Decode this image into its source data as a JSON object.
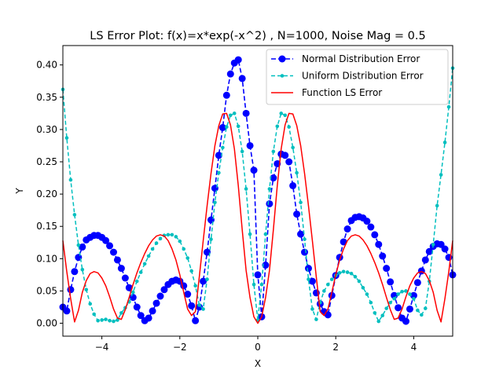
{
  "chart_data": {
    "type": "line",
    "title": "LS Error Plot: f(x)=x*exp(-x^2) , N=1000, Noise Mag = 0.5",
    "xlabel": "X",
    "ylabel": "Y",
    "xlim": [
      -5,
      5
    ],
    "ylim": [
      -0.02,
      0.43
    ],
    "xticks": [
      -4,
      -2,
      0,
      2,
      4
    ],
    "xtick_labels": [
      "−4",
      "−2",
      "0",
      "2",
      "4"
    ],
    "yticks": [
      0.0,
      0.05,
      0.1,
      0.15,
      0.2,
      0.25,
      0.3,
      0.35,
      0.4
    ],
    "ytick_labels": [
      "0.00",
      "0.05",
      "0.10",
      "0.15",
      "0.20",
      "0.25",
      "0.30",
      "0.35",
      "0.40"
    ],
    "grid": false,
    "legend_position": "top-right",
    "series": [
      {
        "name": "Normal Distribution Error",
        "color": "#0000ff",
        "style": "dashed",
        "marker": "large-circle",
        "x": [
          -5.0,
          -4.9,
          -4.8,
          -4.7,
          -4.6,
          -4.5,
          -4.4,
          -4.3,
          -4.2,
          -4.1,
          -4.0,
          -3.9,
          -3.8,
          -3.7,
          -3.6,
          -3.5,
          -3.4,
          -3.3,
          -3.2,
          -3.1,
          -3.0,
          -2.9,
          -2.8,
          -2.7,
          -2.6,
          -2.5,
          -2.4,
          -2.3,
          -2.2,
          -2.1,
          -2.0,
          -1.9,
          -1.8,
          -1.7,
          -1.6,
          -1.5,
          -1.4,
          -1.3,
          -1.2,
          -1.1,
          -1.0,
          -0.9,
          -0.8,
          -0.7,
          -0.6,
          -0.5,
          -0.4,
          -0.3,
          -0.2,
          -0.1,
          0.0,
          0.1,
          0.2,
          0.3,
          0.4,
          0.5,
          0.6,
          0.7,
          0.8,
          0.9,
          1.0,
          1.1,
          1.2,
          1.3,
          1.4,
          1.5,
          1.6,
          1.7,
          1.8,
          1.9,
          2.0,
          2.1,
          2.2,
          2.3,
          2.4,
          2.5,
          2.6,
          2.7,
          2.8,
          2.9,
          3.0,
          3.1,
          3.2,
          3.3,
          3.4,
          3.5,
          3.6,
          3.7,
          3.8,
          3.9,
          4.0,
          4.1,
          4.2,
          4.3,
          4.4,
          4.5,
          4.6,
          4.7,
          4.8,
          4.9,
          5.0
        ],
        "y": [
          0.025,
          0.019,
          0.052,
          0.08,
          0.102,
          0.118,
          0.129,
          0.133,
          0.136,
          0.136,
          0.133,
          0.128,
          0.12,
          0.11,
          0.098,
          0.085,
          0.07,
          0.055,
          0.04,
          0.025,
          0.012,
          0.004,
          0.008,
          0.019,
          0.031,
          0.042,
          0.052,
          0.06,
          0.065,
          0.067,
          0.065,
          0.058,
          0.045,
          0.027,
          0.004,
          0.025,
          0.065,
          0.11,
          0.16,
          0.209,
          0.26,
          0.303,
          0.353,
          0.386,
          0.403,
          0.408,
          0.379,
          0.325,
          0.275,
          0.237,
          0.075,
          0.01,
          0.09,
          0.185,
          0.225,
          0.247,
          0.262,
          0.26,
          0.25,
          0.213,
          0.169,
          0.138,
          0.11,
          0.085,
          0.065,
          0.047,
          0.03,
          0.018,
          0.013,
          0.043,
          0.074,
          0.102,
          0.126,
          0.146,
          0.159,
          0.164,
          0.165,
          0.163,
          0.158,
          0.149,
          0.137,
          0.122,
          0.104,
          0.085,
          0.064,
          0.043,
          0.024,
          0.008,
          0.003,
          0.022,
          0.043,
          0.063,
          0.081,
          0.098,
          0.111,
          0.119,
          0.123,
          0.122,
          0.115,
          0.102,
          0.075
        ]
      },
      {
        "name": "Uniform Distribution Error",
        "color": "#00bfbf",
        "style": "dashed",
        "marker": "small-circle",
        "x": [
          -5.0,
          -4.9,
          -4.8,
          -4.7,
          -4.6,
          -4.5,
          -4.4,
          -4.3,
          -4.2,
          -4.1,
          -4.0,
          -3.9,
          -3.8,
          -3.7,
          -3.6,
          -3.5,
          -3.4,
          -3.3,
          -3.2,
          -3.1,
          -3.0,
          -2.9,
          -2.8,
          -2.7,
          -2.6,
          -2.5,
          -2.4,
          -2.3,
          -2.2,
          -2.1,
          -2.0,
          -1.9,
          -1.8,
          -1.7,
          -1.6,
          -1.5,
          -1.4,
          -1.3,
          -1.2,
          -1.1,
          -1.0,
          -0.9,
          -0.8,
          -0.7,
          -0.6,
          -0.5,
          -0.4,
          -0.3,
          -0.2,
          -0.1,
          0.0,
          0.1,
          0.2,
          0.3,
          0.4,
          0.5,
          0.6,
          0.7,
          0.8,
          0.9,
          1.0,
          1.1,
          1.2,
          1.3,
          1.4,
          1.5,
          1.6,
          1.7,
          1.8,
          1.9,
          2.0,
          2.1,
          2.2,
          2.3,
          2.4,
          2.5,
          2.6,
          2.7,
          2.8,
          2.9,
          3.0,
          3.1,
          3.2,
          3.3,
          3.4,
          3.5,
          3.6,
          3.7,
          3.8,
          3.9,
          4.0,
          4.1,
          4.2,
          4.3,
          4.4,
          4.5,
          4.6,
          4.7,
          4.8,
          4.9,
          5.0
        ],
        "y": [
          0.362,
          0.287,
          0.222,
          0.168,
          0.121,
          0.083,
          0.052,
          0.03,
          0.014,
          0.004,
          0.005,
          0.006,
          0.004,
          0.003,
          0.005,
          0.016,
          0.024,
          0.033,
          0.048,
          0.065,
          0.079,
          0.092,
          0.104,
          0.115,
          0.124,
          0.131,
          0.136,
          0.137,
          0.137,
          0.134,
          0.127,
          0.115,
          0.101,
          0.081,
          0.058,
          0.028,
          0.022,
          0.068,
          0.13,
          0.187,
          0.233,
          0.272,
          0.304,
          0.322,
          0.325,
          0.305,
          0.266,
          0.208,
          0.138,
          0.06,
          0.005,
          0.06,
          0.138,
          0.208,
          0.266,
          0.305,
          0.325,
          0.322,
          0.304,
          0.272,
          0.233,
          0.187,
          0.13,
          0.068,
          0.022,
          0.006,
          0.032,
          0.05,
          0.06,
          0.068,
          0.074,
          0.078,
          0.08,
          0.079,
          0.077,
          0.072,
          0.065,
          0.055,
          0.045,
          0.032,
          0.016,
          0.003,
          0.012,
          0.023,
          0.032,
          0.038,
          0.045,
          0.049,
          0.05,
          0.045,
          0.038,
          0.02,
          0.013,
          0.023,
          0.065,
          0.122,
          0.182,
          0.23,
          0.28,
          0.335,
          0.395
        ]
      },
      {
        "name": "Function LS Error",
        "color": "#ff0000",
        "style": "solid",
        "marker": "none",
        "x": [
          -5.0,
          -4.9,
          -4.8,
          -4.7,
          -4.6,
          -4.5,
          -4.4,
          -4.3,
          -4.2,
          -4.1,
          -4.0,
          -3.9,
          -3.8,
          -3.7,
          -3.6,
          -3.5,
          -3.4,
          -3.3,
          -3.2,
          -3.1,
          -3.0,
          -2.9,
          -2.8,
          -2.7,
          -2.6,
          -2.5,
          -2.4,
          -2.3,
          -2.2,
          -2.1,
          -2.0,
          -1.9,
          -1.8,
          -1.7,
          -1.6,
          -1.5,
          -1.4,
          -1.3,
          -1.2,
          -1.1,
          -1.0,
          -0.9,
          -0.8,
          -0.7,
          -0.6,
          -0.5,
          -0.4,
          -0.3,
          -0.2,
          -0.1,
          0.0,
          0.1,
          0.2,
          0.3,
          0.4,
          0.5,
          0.6,
          0.7,
          0.8,
          0.9,
          1.0,
          1.1,
          1.2,
          1.3,
          1.4,
          1.5,
          1.6,
          1.7,
          1.8,
          1.9,
          2.0,
          2.1,
          2.2,
          2.3,
          2.4,
          2.5,
          2.6,
          2.7,
          2.8,
          2.9,
          3.0,
          3.1,
          3.2,
          3.3,
          3.4,
          3.5,
          3.6,
          3.7,
          3.8,
          3.9,
          4.0,
          4.1,
          4.2,
          4.3,
          4.4,
          4.5,
          4.6,
          4.7,
          4.8,
          4.9,
          5.0
        ],
        "y": [
          0.128,
          0.08,
          0.038,
          0.002,
          0.02,
          0.048,
          0.066,
          0.077,
          0.08,
          0.078,
          0.07,
          0.058,
          0.041,
          0.022,
          0.008,
          0.006,
          0.021,
          0.04,
          0.06,
          0.078,
          0.094,
          0.108,
          0.12,
          0.129,
          0.135,
          0.137,
          0.135,
          0.128,
          0.115,
          0.098,
          0.075,
          0.048,
          0.022,
          0.012,
          0.018,
          0.072,
          0.128,
          0.182,
          0.232,
          0.275,
          0.306,
          0.324,
          0.325,
          0.307,
          0.27,
          0.213,
          0.145,
          0.082,
          0.04,
          0.01,
          0.0,
          0.01,
          0.04,
          0.082,
          0.145,
          0.213,
          0.27,
          0.307,
          0.325,
          0.324,
          0.306,
          0.275,
          0.232,
          0.182,
          0.128,
          0.072,
          0.018,
          0.012,
          0.022,
          0.048,
          0.075,
          0.098,
          0.115,
          0.128,
          0.135,
          0.137,
          0.135,
          0.129,
          0.12,
          0.108,
          0.094,
          0.078,
          0.06,
          0.04,
          0.021,
          0.006,
          0.008,
          0.022,
          0.041,
          0.058,
          0.07,
          0.078,
          0.08,
          0.077,
          0.066,
          0.048,
          0.02,
          0.002,
          0.038,
          0.08,
          0.128
        ]
      }
    ]
  }
}
